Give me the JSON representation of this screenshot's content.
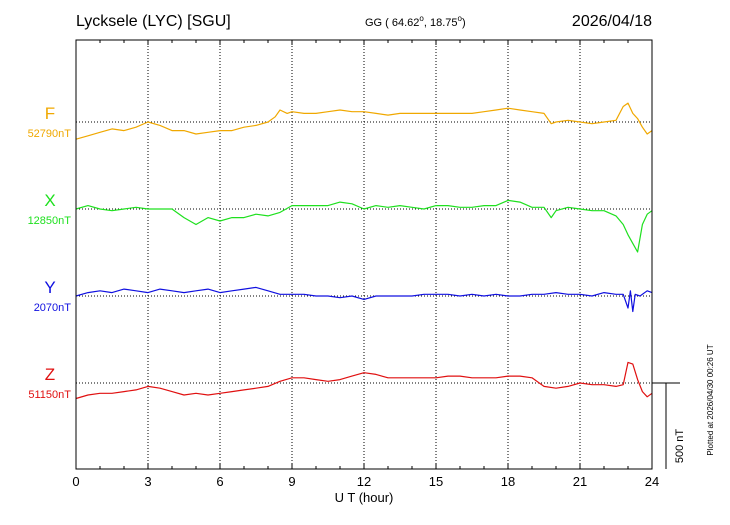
{
  "header": {
    "station": "Lycksele (LYC)  [SGU]",
    "coords_prefix": "GG ( 64.62",
    "coords_mid": ",  18.75",
    "coords_suffix": ")",
    "degree_symbol": "o",
    "date": "2026/04/18"
  },
  "plotted_note": "Plotted at 2026/04/30 00:26 UT",
  "scale_bar_label": "500 nT",
  "chart_data": {
    "type": "line",
    "xlabel": "U T (hour)",
    "xlim": [
      0,
      24
    ],
    "xticks": [
      0,
      3,
      6,
      9,
      12,
      15,
      18,
      21,
      24
    ],
    "xtick_labels": [
      "0",
      "3",
      "6",
      "9",
      "12",
      "15",
      "18",
      "21",
      "24"
    ],
    "grid": true,
    "scale_nT": 500,
    "series": [
      {
        "name": "F",
        "baseline_label": "52790nT",
        "baseline": 52790,
        "color": "#f0a800",
        "x": [
          0,
          0.5,
          1,
          1.5,
          2,
          2.5,
          3,
          3.5,
          4,
          4.5,
          5,
          5.5,
          6,
          6.5,
          7,
          7.5,
          8,
          8.3,
          8.5,
          8.8,
          9,
          9.5,
          10,
          10.5,
          11,
          11.5,
          12,
          12.5,
          13,
          13.5,
          14,
          14.5,
          15,
          15.5,
          16,
          16.5,
          17,
          17.5,
          18,
          18.5,
          19,
          19.5,
          19.8,
          20,
          20.5,
          21,
          21.5,
          22,
          22.5,
          22.8,
          23,
          23.2,
          23.4,
          23.6,
          23.8,
          24
        ],
        "y": [
          52690,
          52710,
          52730,
          52750,
          52740,
          52760,
          52790,
          52770,
          52740,
          52740,
          52720,
          52730,
          52740,
          52740,
          52760,
          52770,
          52790,
          52820,
          52860,
          52840,
          52850,
          52840,
          52840,
          52850,
          52860,
          52850,
          52850,
          52840,
          52830,
          52840,
          52840,
          52840,
          52840,
          52840,
          52840,
          52840,
          52850,
          52860,
          52870,
          52860,
          52850,
          52840,
          52780,
          52790,
          52800,
          52790,
          52780,
          52790,
          52800,
          52880,
          52900,
          52840,
          52810,
          52760,
          52720,
          52740
        ]
      },
      {
        "name": "X",
        "baseline_label": "12850nT",
        "baseline": 12850,
        "color": "#1ee01e",
        "x": [
          0,
          0.5,
          1,
          1.5,
          2,
          2.5,
          3,
          3.5,
          4,
          4.5,
          5,
          5.5,
          6,
          6.5,
          7,
          7.5,
          8,
          8.5,
          9,
          9.5,
          10,
          10.5,
          11,
          11.5,
          12,
          12.5,
          13,
          13.5,
          14,
          14.5,
          15,
          15.5,
          16,
          16.5,
          17,
          17.5,
          18,
          18.5,
          19,
          19.5,
          19.8,
          20,
          20.5,
          21,
          21.5,
          22,
          22.5,
          22.8,
          23,
          23.2,
          23.4,
          23.6,
          23.8,
          24
        ],
        "y": [
          12850,
          12870,
          12850,
          12840,
          12850,
          12860,
          12850,
          12850,
          12850,
          12800,
          12760,
          12800,
          12780,
          12800,
          12800,
          12820,
          12810,
          12830,
          12870,
          12870,
          12870,
          12870,
          12890,
          12880,
          12850,
          12870,
          12860,
          12870,
          12860,
          12850,
          12870,
          12870,
          12860,
          12860,
          12870,
          12870,
          12900,
          12890,
          12860,
          12860,
          12800,
          12840,
          12860,
          12850,
          12840,
          12840,
          12810,
          12760,
          12700,
          12650,
          12600,
          12760,
          12820,
          12840
        ]
      },
      {
        "name": "Y",
        "baseline_label": "2070nT",
        "baseline": 2070,
        "color": "#1010e0",
        "x": [
          0,
          0.5,
          1,
          1.5,
          2,
          2.5,
          3,
          3.5,
          4,
          4.5,
          5,
          5.5,
          6,
          6.5,
          7,
          7.5,
          8,
          8.5,
          9,
          9.5,
          10,
          10.5,
          11,
          11.5,
          12,
          12.5,
          13,
          13.5,
          14,
          14.5,
          15,
          15.5,
          16,
          16.5,
          17,
          17.5,
          18,
          18.5,
          19,
          19.5,
          20,
          20.5,
          21,
          21.5,
          22,
          22.5,
          22.8,
          23,
          23.1,
          23.2,
          23.3,
          23.5,
          23.8,
          24
        ],
        "y": [
          2070,
          2090,
          2100,
          2090,
          2110,
          2100,
          2090,
          2110,
          2100,
          2090,
          2100,
          2110,
          2090,
          2100,
          2110,
          2120,
          2100,
          2080,
          2080,
          2080,
          2070,
          2070,
          2060,
          2070,
          2050,
          2070,
          2070,
          2070,
          2070,
          2080,
          2080,
          2080,
          2070,
          2080,
          2070,
          2080,
          2070,
          2070,
          2080,
          2080,
          2090,
          2080,
          2080,
          2070,
          2090,
          2080,
          2080,
          2000,
          2100,
          1980,
          2080,
          2070,
          2100,
          2090
        ]
      },
      {
        "name": "Z",
        "baseline_label": "51150nT",
        "baseline": 51150,
        "color": "#e01010",
        "x": [
          0,
          0.5,
          1,
          1.5,
          2,
          2.5,
          3,
          3.5,
          4,
          4.5,
          5,
          5.5,
          6,
          6.5,
          7,
          7.5,
          8,
          8.5,
          9,
          9.5,
          10,
          10.5,
          11,
          11.5,
          12,
          12.5,
          13,
          13.5,
          14,
          14.5,
          15,
          15.5,
          16,
          16.5,
          17,
          17.5,
          18,
          18.5,
          19,
          19.5,
          20,
          20.5,
          21,
          21.5,
          22,
          22.5,
          22.8,
          23,
          23.2,
          23.4,
          23.6,
          23.8,
          24
        ],
        "y": [
          51060,
          51080,
          51090,
          51090,
          51100,
          51110,
          51130,
          51120,
          51100,
          51080,
          51090,
          51080,
          51090,
          51100,
          51110,
          51120,
          51130,
          51160,
          51180,
          51180,
          51170,
          51160,
          51170,
          51190,
          51210,
          51200,
          51180,
          51180,
          51180,
          51180,
          51180,
          51190,
          51190,
          51180,
          51180,
          51180,
          51190,
          51190,
          51180,
          51130,
          51120,
          51130,
          51150,
          51140,
          51140,
          51130,
          51140,
          51270,
          51260,
          51170,
          51100,
          51070,
          51090
        ]
      }
    ]
  }
}
